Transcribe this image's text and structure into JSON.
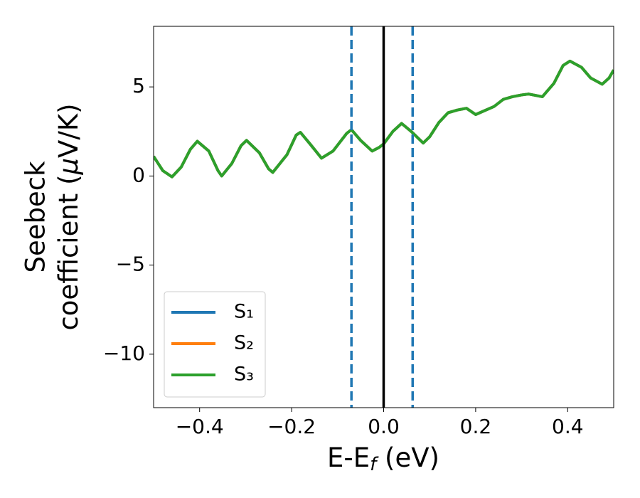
{
  "chart_data": {
    "type": "line",
    "xlabel": [
      "E-E",
      "f",
      " (eV)"
    ],
    "ylabel": [
      "Seebeck",
      "coefficient  (",
      "μ",
      "V/K)"
    ],
    "x": [
      -0.5,
      -0.48,
      -0.46,
      -0.44,
      -0.42,
      -0.405,
      -0.38,
      -0.36,
      -0.352,
      -0.33,
      -0.31,
      -0.298,
      -0.27,
      -0.25,
      -0.241,
      -0.21,
      -0.19,
      -0.181,
      -0.16,
      -0.135,
      -0.11,
      -0.08,
      -0.07,
      -0.05,
      -0.025,
      -0.01,
      0.0,
      0.02,
      0.039,
      0.06,
      0.086,
      0.1,
      0.12,
      0.14,
      0.16,
      0.18,
      0.2,
      0.24,
      0.26,
      0.28,
      0.3,
      0.315,
      0.345,
      0.37,
      0.39,
      0.405,
      0.43,
      0.45,
      0.475,
      0.49,
      0.5
    ],
    "series": [
      {
        "name": "S₁",
        "color": "#1f77b4",
        "values": [
          1.1,
          0.3,
          -0.05,
          0.5,
          1.5,
          1.95,
          1.4,
          0.3,
          0.0,
          0.7,
          1.7,
          2.0,
          1.3,
          0.4,
          0.2,
          1.2,
          2.3,
          2.45,
          1.8,
          1.0,
          1.4,
          2.4,
          2.6,
          2.0,
          1.4,
          1.6,
          1.8,
          2.5,
          2.95,
          2.5,
          1.85,
          2.2,
          3.0,
          3.55,
          3.7,
          3.8,
          3.45,
          3.9,
          4.3,
          4.45,
          4.55,
          4.6,
          4.45,
          5.2,
          6.2,
          6.45,
          6.1,
          5.5,
          5.15,
          5.5,
          5.95
        ]
      },
      {
        "name": "S₂",
        "color": "#ff7f0e",
        "values": [
          1.1,
          0.3,
          -0.05,
          0.5,
          1.5,
          1.95,
          1.4,
          0.3,
          0.0,
          0.7,
          1.7,
          2.0,
          1.3,
          0.4,
          0.2,
          1.2,
          2.3,
          2.45,
          1.8,
          1.0,
          1.4,
          2.4,
          2.6,
          2.0,
          1.4,
          1.6,
          1.8,
          2.5,
          2.95,
          2.5,
          1.85,
          2.2,
          3.0,
          3.55,
          3.7,
          3.8,
          3.45,
          3.9,
          4.3,
          4.45,
          4.55,
          4.6,
          4.45,
          5.2,
          6.2,
          6.45,
          6.1,
          5.5,
          5.15,
          5.5,
          5.95
        ]
      },
      {
        "name": "S₃",
        "color": "#2ca02c",
        "values": [
          1.1,
          0.3,
          -0.05,
          0.5,
          1.5,
          1.95,
          1.4,
          0.3,
          0.0,
          0.7,
          1.7,
          2.0,
          1.3,
          0.4,
          0.2,
          1.2,
          2.3,
          2.45,
          1.8,
          1.0,
          1.4,
          2.4,
          2.6,
          2.0,
          1.4,
          1.6,
          1.8,
          2.5,
          2.95,
          2.5,
          1.85,
          2.2,
          3.0,
          3.55,
          3.7,
          3.8,
          3.45,
          3.9,
          4.3,
          4.45,
          4.55,
          4.6,
          4.45,
          5.2,
          6.2,
          6.45,
          6.1,
          5.5,
          5.15,
          5.5,
          5.95
        ]
      }
    ],
    "vlines": [
      {
        "x": -0.07,
        "color": "#1f77b4",
        "style": "dashed"
      },
      {
        "x": 0.0,
        "color": "#000000",
        "style": "solid"
      },
      {
        "x": 0.063,
        "color": "#1f77b4",
        "style": "dashed"
      }
    ],
    "xlim": [
      -0.5,
      0.5
    ],
    "ylim": [
      -13,
      8.4
    ],
    "xticks": [
      {
        "value": -0.4,
        "label": "−0.4"
      },
      {
        "value": -0.2,
        "label": "−0.2"
      },
      {
        "value": 0.0,
        "label": "0.0"
      },
      {
        "value": 0.2,
        "label": "0.2"
      },
      {
        "value": 0.4,
        "label": "0.4"
      }
    ],
    "yticks": [
      {
        "value": -10,
        "label": "−10"
      },
      {
        "value": -5,
        "label": "−5"
      },
      0,
      5
    ],
    "grid": false,
    "legend": "lower left"
  }
}
